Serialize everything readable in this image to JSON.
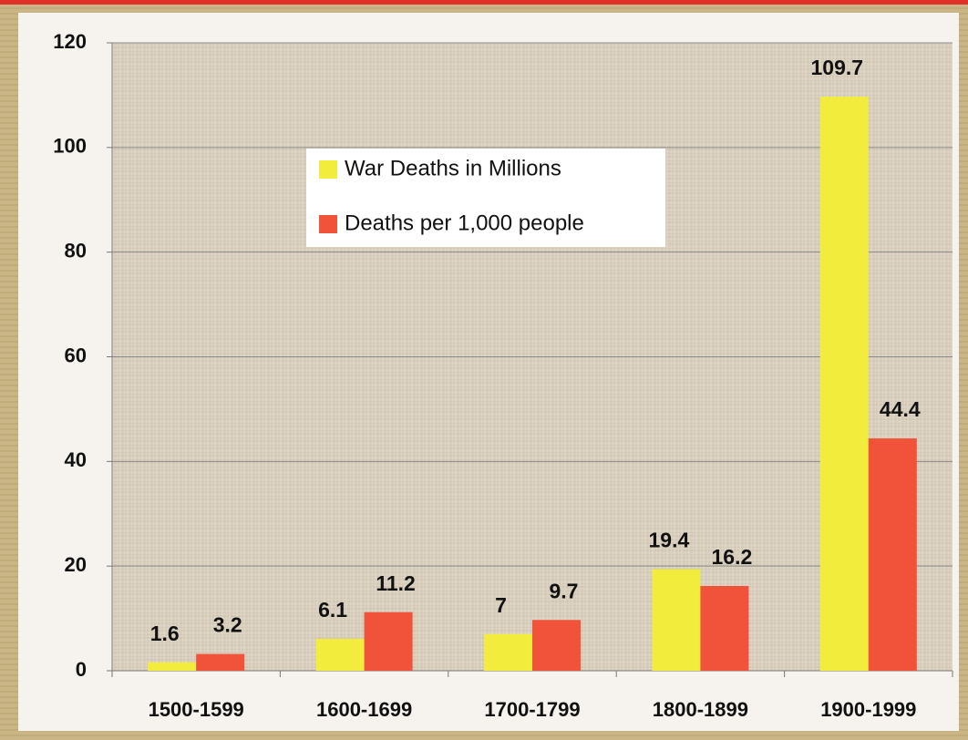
{
  "chart_data": {
    "type": "bar",
    "categories": [
      "1500-1599",
      "1600-1699",
      "1700-1799",
      "1800-1899",
      "1900-1999"
    ],
    "series": [
      {
        "name": "War Deaths in Millions",
        "color": "#f2ec3c",
        "values": [
          1.6,
          6.1,
          7,
          19.4,
          109.7
        ]
      },
      {
        "name": "Deaths per 1,000 people",
        "color": "#f0523a",
        "values": [
          3.2,
          11.2,
          9.7,
          16.2,
          44.4
        ]
      }
    ],
    "ylim": [
      0,
      120
    ],
    "yticks": [
      0,
      20,
      40,
      60,
      80,
      100,
      120
    ],
    "grid": true
  }
}
